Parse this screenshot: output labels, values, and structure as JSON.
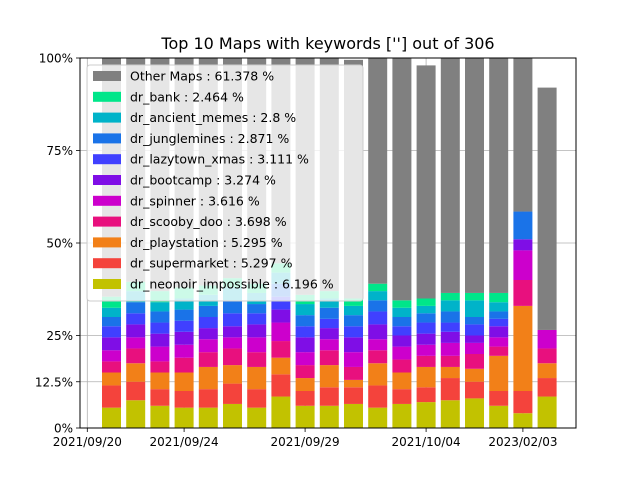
{
  "chart_data": {
    "type": "bar",
    "stacked": true,
    "title": "Top 10 Maps with keywords [''] out of 306",
    "ylim": [
      0,
      100
    ],
    "y_ticks": [
      {
        "value": 0,
        "label": "0%"
      },
      {
        "value": 12.5,
        "label": "12.5%"
      },
      {
        "value": 25,
        "label": "25%"
      },
      {
        "value": 50,
        "label": "50%"
      },
      {
        "value": 75,
        "label": "75%"
      },
      {
        "value": 100,
        "label": "100%"
      }
    ],
    "x_ticks": [
      {
        "index": -1,
        "label": "2021/09/20"
      },
      {
        "index": 3,
        "label": "2021/09/24"
      },
      {
        "index": 8,
        "label": "2021/09/29"
      },
      {
        "index": 13,
        "label": "2021/10/04"
      },
      {
        "index": 17,
        "label": "2023/02/03"
      }
    ],
    "grid": true,
    "legend_placement": "top-left",
    "series": [
      {
        "name": "dr_neonoir_impossible : 6.196 %",
        "color": "#c2c200",
        "values": [
          5.5,
          7.5,
          6,
          5.5,
          5.5,
          6.5,
          5.5,
          8.5,
          6,
          6,
          6.5,
          5.5,
          6.5,
          7,
          7.5,
          8,
          6,
          4,
          8.5
        ]
      },
      {
        "name": "dr_supermarket : 5.297 %",
        "color": "#f4433c",
        "values": [
          6,
          5,
          4.5,
          4.5,
          5,
          5.5,
          5,
          6,
          4,
          5,
          4.5,
          6,
          4,
          4,
          6,
          4.5,
          4,
          6,
          5
        ]
      },
      {
        "name": "dr_playstation : 5.295 %",
        "color": "#f28018",
        "values": [
          3.5,
          5,
          4.5,
          5,
          6,
          5,
          6,
          4.5,
          3.5,
          6,
          2,
          6,
          4.5,
          5.5,
          3,
          3.5,
          9.5,
          23,
          4
        ]
      },
      {
        "name": "dr_scooby_doo : 3.698 %",
        "color": "#e8107e",
        "values": [
          3,
          4,
          3,
          4,
          4,
          4.5,
          4,
          4.5,
          3.5,
          4,
          3.5,
          3.5,
          3.5,
          3,
          3,
          4,
          2.5,
          7,
          4
        ]
      },
      {
        "name": "dr_spinner : 3.616 %",
        "color": "#cc00cc",
        "values": [
          3,
          3,
          4,
          3.5,
          3.5,
          3,
          4,
          5,
          3.5,
          3,
          4,
          3,
          3.5,
          3,
          3.5,
          3,
          2.5,
          8,
          5
        ]
      },
      {
        "name": "dr_bootcamp : 3.274 %",
        "color": "#7f0ee6",
        "values": [
          3.5,
          3.5,
          3.5,
          3.5,
          3,
          3,
          3.5,
          3.5,
          4,
          3,
          4,
          4,
          3,
          3,
          3,
          2,
          3,
          3,
          0
        ]
      },
      {
        "name": "dr_lazytown_xmas : 3.111 %",
        "color": "#4040ff",
        "values": [
          3,
          3,
          3,
          3,
          3,
          3.5,
          3,
          3.5,
          3,
          2.5,
          3,
          3.5,
          2.5,
          3,
          2.5,
          3,
          2,
          0,
          0
        ]
      },
      {
        "name": "dr_junglemines : 2.871 %",
        "color": "#1a73e8",
        "values": [
          2.5,
          3,
          3,
          3,
          3,
          3.5,
          2.5,
          3.5,
          3,
          3,
          3,
          3,
          2.5,
          2.5,
          3,
          2,
          2,
          7.5,
          0
        ]
      },
      {
        "name": "dr_ancient_memes : 2.8 %",
        "color": "#00b3c9",
        "values": [
          2.5,
          3,
          2.5,
          3,
          3,
          3.5,
          3,
          3,
          3,
          2.5,
          2.5,
          2.5,
          2.5,
          2,
          3,
          4.5,
          2.5,
          0,
          0
        ]
      },
      {
        "name": "dr_bank : 2.464 %",
        "color": "#00e68a",
        "values": [
          3,
          2.5,
          3,
          3,
          2.5,
          2.5,
          2.5,
          2.5,
          2.5,
          2,
          2,
          2,
          2,
          2,
          2,
          2,
          2.5,
          0,
          0
        ]
      },
      {
        "name": "Other Maps : 61.378 %",
        "color": "#808080",
        "values": [
          64.5,
          60.5,
          63,
          62,
          61.5,
          59.5,
          61,
          55.5,
          64,
          63,
          64.5,
          61,
          65.5,
          63,
          63.5,
          63.5,
          63.5,
          41.5,
          65.5
        ]
      }
    ]
  }
}
